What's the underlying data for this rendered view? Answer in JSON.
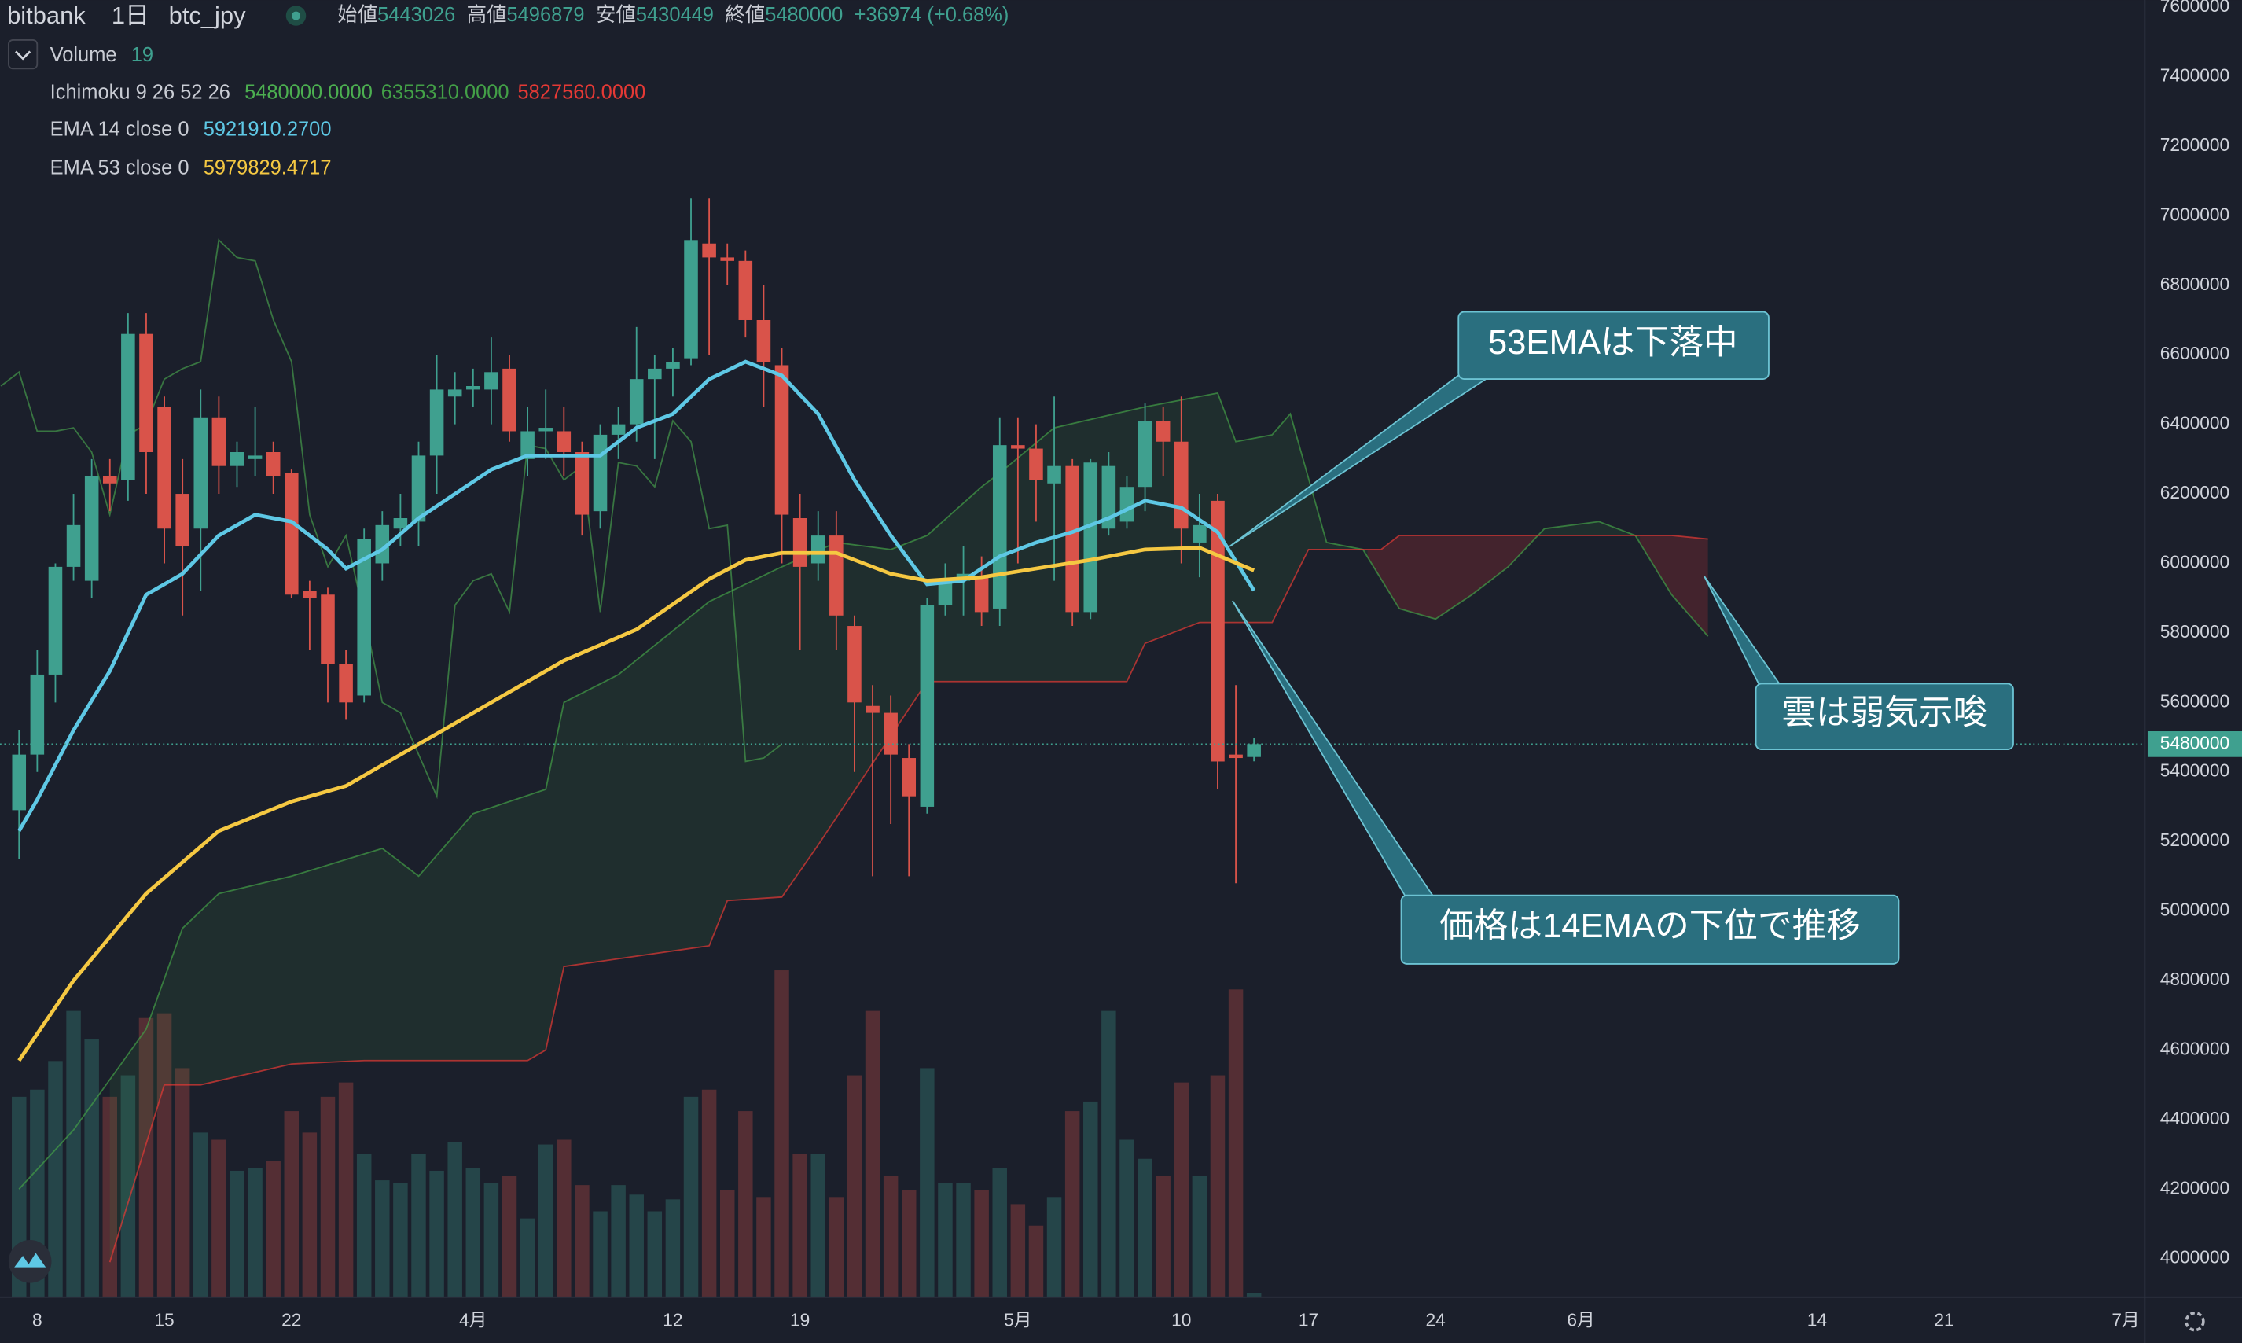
{
  "header": {
    "exchange": "bitbank",
    "interval": "1日",
    "symbol": "btc_jpy",
    "open_label": "始値",
    "high_label": "高値",
    "low_label": "安値",
    "close_label": "終値",
    "change": "+36974 (+0.68%)"
  },
  "chart_data": {
    "type": "candlestick",
    "xlim": [
      -1.05,
      117.05
    ],
    "xticks": [
      {
        "value": 1,
        "label": "8"
      },
      {
        "value": 8,
        "label": "15"
      },
      {
        "value": 15,
        "label": "22"
      },
      {
        "value": 25,
        "label": "4月"
      },
      {
        "value": 36,
        "label": "12"
      },
      {
        "value": 43,
        "label": "19"
      },
      {
        "value": 55,
        "label": "5月"
      },
      {
        "value": 64,
        "label": "10"
      },
      {
        "value": 71,
        "label": "17"
      },
      {
        "value": 78,
        "label": "24"
      },
      {
        "value": 86,
        "label": "6月"
      },
      {
        "value": 99,
        "label": "14"
      },
      {
        "value": 106,
        "label": "21"
      },
      {
        "value": 116,
        "label": "7月"
      }
    ],
    "ylim": [
      3889000,
      7620500
    ],
    "yticks": [
      4000000,
      4200000,
      4400000,
      4600000,
      4800000,
      5000000,
      5200000,
      5400000,
      5600000,
      5800000,
      6000000,
      6200000,
      6400000,
      6600000,
      6800000,
      7000000,
      7200000,
      7400000,
      7600000
    ],
    "grid": false,
    "up_color": "#3fa08f",
    "down_color": "#d9534a",
    "open": [
      5290000,
      5450000,
      5680000,
      5990000,
      5950000,
      6250000,
      6240000,
      6660000,
      6450000,
      6200000,
      6100000,
      6420000,
      6280000,
      6300000,
      6320000,
      6260000,
      5920000,
      5910000,
      5710000,
      5620000,
      6000000,
      6100000,
      6120000,
      6310000,
      6480000,
      6500000,
      6500000,
      6560000,
      6300000,
      6380000,
      6380000,
      6320000,
      6150000,
      6370000,
      6400000,
      6530000,
      6560000,
      6590000,
      6920000,
      6880000,
      6870000,
      6700000,
      6570000,
      6130000,
      6000000,
      6080000,
      5820000,
      5590000,
      5570000,
      5440000,
      5300000,
      5880000,
      5950000,
      5960000,
      5870000,
      6340000,
      6330000,
      6230000,
      6280000,
      5860000,
      6100000,
      6120000,
      6220000,
      6410000,
      6350000,
      6060000,
      6180000,
      5450000,
      5443026
    ],
    "high": [
      5520000,
      5750000,
      6000000,
      6200000,
      6300000,
      6300000,
      6720000,
      6720000,
      6480000,
      6300000,
      6500000,
      6480000,
      6350000,
      6450000,
      6350000,
      6270000,
      5950000,
      5930000,
      5750000,
      6100000,
      6150000,
      6200000,
      6350000,
      6600000,
      6550000,
      6560000,
      6650000,
      6600000,
      6450000,
      6500000,
      6450000,
      6350000,
      6400000,
      6450000,
      6680000,
      6600000,
      6620000,
      7050000,
      7050000,
      6920000,
      6900000,
      6800000,
      6620000,
      6200000,
      6150000,
      6150000,
      5850000,
      5650000,
      5620000,
      5480000,
      5900000,
      6000000,
      6050000,
      6020000,
      6420000,
      6420000,
      6400000,
      6480000,
      6300000,
      6300000,
      6320000,
      6250000,
      6460000,
      6450000,
      6480000,
      6200000,
      6200000,
      5650000,
      5496879
    ],
    "low": [
      5150000,
      5400000,
      5600000,
      5950000,
      5900000,
      6150000,
      6180000,
      6200000,
      6000000,
      5850000,
      5920000,
      6200000,
      6220000,
      6250000,
      6200000,
      5900000,
      5750000,
      5600000,
      5550000,
      5600000,
      5950000,
      6050000,
      6050000,
      6200000,
      6400000,
      6450000,
      6400000,
      6350000,
      6250000,
      6300000,
      6250000,
      6080000,
      6100000,
      6300000,
      6350000,
      6300000,
      6480000,
      6570000,
      6600000,
      6800000,
      6650000,
      6450000,
      6000000,
      5750000,
      5950000,
      5750000,
      5400000,
      5100000,
      5250000,
      5100000,
      5280000,
      5850000,
      5850000,
      5820000,
      5820000,
      6000000,
      6120000,
      5950000,
      5820000,
      5840000,
      6080000,
      6100000,
      6150000,
      6250000,
      6000000,
      5960000,
      5350000,
      5080000,
      5430449
    ],
    "close": [
      5450000,
      5680000,
      5990000,
      6110000,
      6250000,
      6230000,
      6660000,
      6320000,
      6100000,
      6050000,
      6420000,
      6280000,
      6320000,
      6310000,
      6250000,
      5910000,
      5900000,
      5710000,
      5600000,
      6070000,
      6110000,
      6130000,
      6310000,
      6500000,
      6500000,
      6510000,
      6550000,
      6380000,
      6380000,
      6390000,
      6320000,
      6140000,
      6370000,
      6400000,
      6530000,
      6560000,
      6580000,
      6930000,
      6880000,
      6870000,
      6700000,
      6580000,
      6140000,
      5990000,
      6080000,
      5850000,
      5600000,
      5570000,
      5450000,
      5330000,
      5880000,
      5950000,
      5970000,
      5860000,
      6340000,
      6330000,
      6240000,
      6280000,
      5860000,
      6290000,
      6280000,
      6220000,
      6410000,
      6350000,
      6100000,
      6110000,
      5430000,
      5440000,
      5480000
    ],
    "volume": {
      "name": "Volume",
      "values": [
        840,
        870,
        990,
        1200,
        1080,
        840,
        930,
        1170,
        1190,
        960,
        690,
        660,
        530,
        540,
        570,
        780,
        690,
        840,
        900,
        600,
        490,
        480,
        600,
        530,
        650,
        540,
        480,
        510,
        330,
        640,
        660,
        470,
        360,
        470,
        430,
        360,
        410,
        840,
        870,
        450,
        780,
        420,
        1370,
        600,
        600,
        420,
        930,
        1200,
        510,
        450,
        960,
        480,
        480,
        450,
        540,
        390,
        300,
        420,
        780,
        820,
        1200,
        660,
        580,
        510,
        900,
        510,
        930,
        1290,
        19
      ]
    },
    "ichimoku": {
      "name": "Ichimoku 9 26 52 26",
      "displacement": 26,
      "value_labels": [
        "5480000.0000",
        "6355310.0000",
        "5827560.0000"
      ],
      "lagging_color": "#4caf50",
      "span_a": {
        "color": "#43a047",
        "x": [
          0,
          3,
          7,
          9,
          11,
          15,
          20,
          22,
          25,
          29,
          30,
          33,
          38,
          42,
          45,
          48,
          50,
          53,
          54,
          57,
          62,
          66,
          67,
          69,
          70,
          72,
          74,
          76,
          78,
          80,
          82,
          84,
          87,
          89,
          91,
          93
        ],
        "values": [
          4200000,
          4370000,
          4660000,
          4950000,
          5050000,
          5100000,
          5180000,
          5100000,
          5280000,
          5350000,
          5600000,
          5680000,
          5890000,
          5990000,
          6060000,
          6040000,
          6080000,
          6220000,
          6260000,
          6390000,
          6450000,
          6490000,
          6350000,
          6370000,
          6430000,
          6060000,
          6040000,
          5870000,
          5840000,
          5910000,
          5990000,
          6100000,
          6120000,
          6080000,
          5910000,
          5790000
        ]
      },
      "span_b": {
        "color": "#e53935",
        "x": [
          5,
          7,
          8,
          10,
          15,
          19,
          28,
          29,
          30,
          38,
          39,
          42,
          44,
          50,
          61,
          62,
          65,
          69,
          71,
          75,
          76,
          91,
          93
        ],
        "values": [
          3990000,
          4330000,
          4500000,
          4500000,
          4560000,
          4570000,
          4570000,
          4600000,
          4840000,
          4900000,
          5030000,
          5040000,
          5190000,
          5660000,
          5660000,
          5770000,
          5830000,
          5830000,
          6040000,
          6040000,
          6080000,
          6080000,
          6070000
        ]
      }
    },
    "ema": [
      {
        "name": "EMA 14 close 0",
        "value_label": "5921910.2700",
        "color": "#5ec8e5",
        "x": [
          0,
          1,
          3,
          5,
          7,
          9,
          11,
          13,
          15,
          17,
          18,
          20,
          22,
          24,
          26,
          28,
          30,
          32,
          34,
          36,
          38,
          40,
          42,
          44,
          46,
          48,
          50,
          52,
          54,
          56,
          58,
          60,
          62,
          64,
          66,
          68
        ],
        "values": [
          5230000,
          5320000,
          5520000,
          5690000,
          5910000,
          5970000,
          6080000,
          6140000,
          6120000,
          6040000,
          5985000,
          6040000,
          6130000,
          6200000,
          6270000,
          6310000,
          6310000,
          6310000,
          6390000,
          6430000,
          6530000,
          6580000,
          6540000,
          6430000,
          6240000,
          6080000,
          5940000,
          5950000,
          6020000,
          6060000,
          6090000,
          6130000,
          6180000,
          6160000,
          6090000,
          5921910.27
        ]
      },
      {
        "name": "EMA 53 close 0",
        "value_label": "5979829.4717",
        "color": "#f5c842",
        "x": [
          0,
          3,
          7,
          11,
          15,
          18,
          22,
          26,
          30,
          34,
          38,
          40,
          42,
          45,
          48,
          50,
          53,
          56,
          59,
          62,
          65,
          68
        ],
        "values": [
          4570000,
          4800000,
          5050000,
          5230000,
          5315000,
          5360000,
          5480000,
          5600000,
          5720000,
          5810000,
          5955000,
          6010000,
          6030000,
          6030000,
          5970000,
          5950000,
          5960000,
          5985000,
          6010000,
          6040000,
          6045000,
          5979829.47
        ]
      }
    ],
    "annotations": [
      {
        "text": "53EMAは下落中"
      },
      {
        "text": "雲は弱気示唆"
      },
      {
        "text": "価格は14EMAの下位で推移"
      }
    ]
  }
}
